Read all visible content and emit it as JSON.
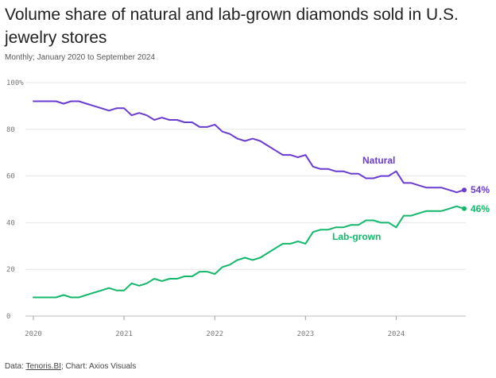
{
  "title": "Volume share of natural and lab-grown diamonds sold in U.S. jewelry stores",
  "subtitle": "Monthly; January 2020 to September 2024",
  "source": {
    "prefix": "Data: ",
    "link": "Tenoris.BI",
    "suffix": "; Chart: Axios Visuals"
  },
  "chart_data": {
    "type": "line",
    "title": "Volume share of natural and lab-grown diamonds sold in U.S. jewelry stores",
    "xlim": [
      2020.0,
      2024.75
    ],
    "ylim": [
      0,
      100
    ],
    "x_ticks": [
      2020,
      2021,
      2022,
      2023,
      2024
    ],
    "x_tick_labels": [
      "2020",
      "2021",
      "2022",
      "2023",
      "2024"
    ],
    "y_ticks": [
      0,
      20,
      40,
      60,
      80,
      100
    ],
    "y_tick_labels": [
      "0",
      "20",
      "40",
      "60",
      "80",
      "100%"
    ],
    "grid": "horizontal",
    "legend": "direct labels",
    "series": [
      {
        "name": "Natural",
        "color": "#6a3bd2",
        "end_label": "54%",
        "points": [
          [
            "2020-01",
            92
          ],
          [
            "2020-04",
            92
          ],
          [
            "2020-05",
            91
          ],
          [
            "2020-06",
            92
          ],
          [
            "2020-07",
            92
          ],
          [
            "2020-08",
            91
          ],
          [
            "2020-09",
            90
          ],
          [
            "2020-10",
            89
          ],
          [
            "2020-11",
            88
          ],
          [
            "2020-12",
            89
          ],
          [
            "2021-01",
            89
          ],
          [
            "2021-02",
            86
          ],
          [
            "2021-03",
            87
          ],
          [
            "2021-04",
            86
          ],
          [
            "2021-05",
            84
          ],
          [
            "2021-06",
            85
          ],
          [
            "2021-07",
            84
          ],
          [
            "2021-08",
            84
          ],
          [
            "2021-09",
            83
          ],
          [
            "2021-10",
            83
          ],
          [
            "2021-11",
            81
          ],
          [
            "2021-12",
            81
          ],
          [
            "2022-01",
            82
          ],
          [
            "2022-02",
            79
          ],
          [
            "2022-03",
            78
          ],
          [
            "2022-04",
            76
          ],
          [
            "2022-05",
            75
          ],
          [
            "2022-06",
            76
          ],
          [
            "2022-07",
            75
          ],
          [
            "2022-08",
            73
          ],
          [
            "2022-09",
            71
          ],
          [
            "2022-10",
            69
          ],
          [
            "2022-11",
            69
          ],
          [
            "2022-12",
            68
          ],
          [
            "2023-01",
            69
          ],
          [
            "2023-02",
            64
          ],
          [
            "2023-03",
            63
          ],
          [
            "2023-04",
            63
          ],
          [
            "2023-05",
            62
          ],
          [
            "2023-06",
            62
          ],
          [
            "2023-07",
            61
          ],
          [
            "2023-08",
            61
          ],
          [
            "2023-09",
            59
          ],
          [
            "2023-10",
            59
          ],
          [
            "2023-11",
            60
          ],
          [
            "2023-12",
            60
          ],
          [
            "2024-01",
            62
          ],
          [
            "2024-02",
            57
          ],
          [
            "2024-03",
            57
          ],
          [
            "2024-04",
            56
          ],
          [
            "2024-05",
            55
          ],
          [
            "2024-06",
            55
          ],
          [
            "2024-07",
            55
          ],
          [
            "2024-08",
            54
          ],
          [
            "2024-09",
            53
          ],
          [
            "2024-10",
            54
          ]
        ]
      },
      {
        "name": "Lab-grown",
        "color": "#12b76a",
        "end_label": "46%",
        "points": [
          [
            "2020-01",
            8
          ],
          [
            "2020-04",
            8
          ],
          [
            "2020-05",
            9
          ],
          [
            "2020-06",
            8
          ],
          [
            "2020-07",
            8
          ],
          [
            "2020-08",
            9
          ],
          [
            "2020-09",
            10
          ],
          [
            "2020-10",
            11
          ],
          [
            "2020-11",
            12
          ],
          [
            "2020-12",
            11
          ],
          [
            "2021-01",
            11
          ],
          [
            "2021-02",
            14
          ],
          [
            "2021-03",
            13
          ],
          [
            "2021-04",
            14
          ],
          [
            "2021-05",
            16
          ],
          [
            "2021-06",
            15
          ],
          [
            "2021-07",
            16
          ],
          [
            "2021-08",
            16
          ],
          [
            "2021-09",
            17
          ],
          [
            "2021-10",
            17
          ],
          [
            "2021-11",
            19
          ],
          [
            "2021-12",
            19
          ],
          [
            "2022-01",
            18
          ],
          [
            "2022-02",
            21
          ],
          [
            "2022-03",
            22
          ],
          [
            "2022-04",
            24
          ],
          [
            "2022-05",
            25
          ],
          [
            "2022-06",
            24
          ],
          [
            "2022-07",
            25
          ],
          [
            "2022-08",
            27
          ],
          [
            "2022-09",
            29
          ],
          [
            "2022-10",
            31
          ],
          [
            "2022-11",
            31
          ],
          [
            "2022-12",
            32
          ],
          [
            "2023-01",
            31
          ],
          [
            "2023-02",
            36
          ],
          [
            "2023-03",
            37
          ],
          [
            "2023-04",
            37
          ],
          [
            "2023-05",
            38
          ],
          [
            "2023-06",
            38
          ],
          [
            "2023-07",
            39
          ],
          [
            "2023-08",
            39
          ],
          [
            "2023-09",
            41
          ],
          [
            "2023-10",
            41
          ],
          [
            "2023-11",
            40
          ],
          [
            "2023-12",
            40
          ],
          [
            "2024-01",
            38
          ],
          [
            "2024-02",
            43
          ],
          [
            "2024-03",
            43
          ],
          [
            "2024-04",
            44
          ],
          [
            "2024-05",
            45
          ],
          [
            "2024-06",
            45
          ],
          [
            "2024-07",
            45
          ],
          [
            "2024-08",
            46
          ],
          [
            "2024-09",
            47
          ],
          [
            "2024-10",
            46
          ]
        ]
      }
    ]
  }
}
